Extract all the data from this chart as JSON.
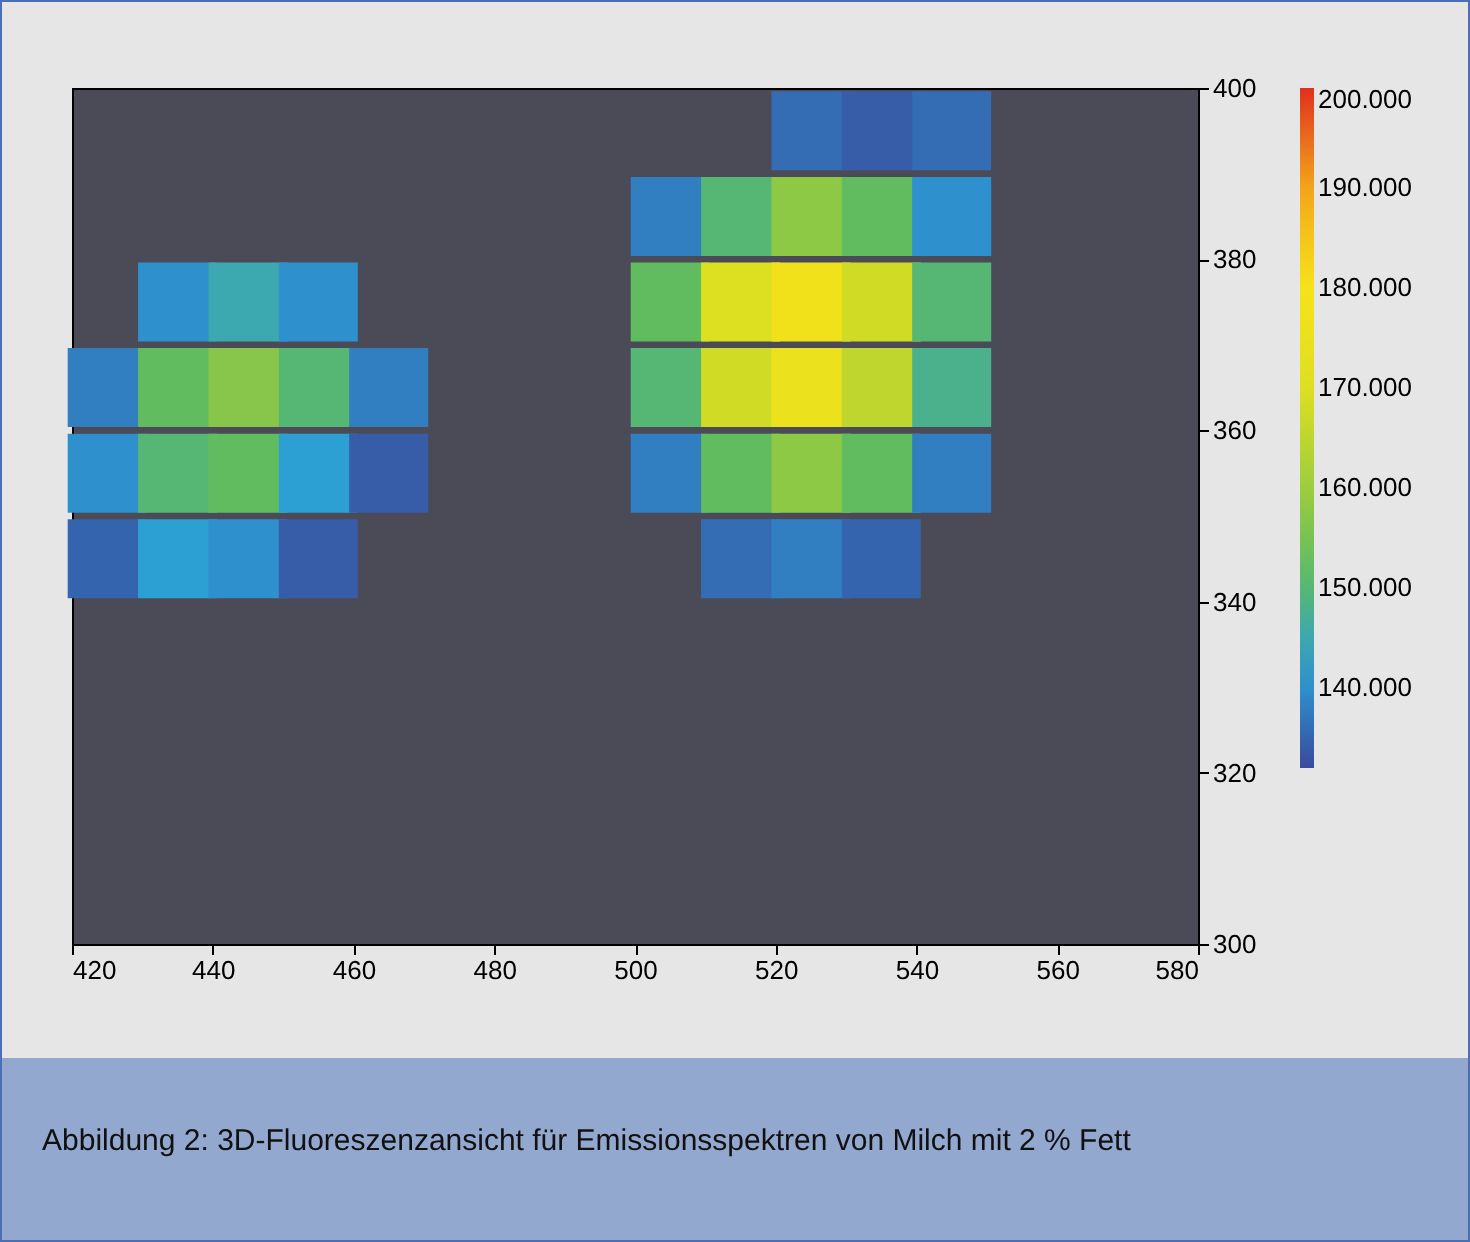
{
  "chart_data": {
    "type": "scatter",
    "marker": "square",
    "x": [
      525,
      535,
      545,
      505,
      515,
      525,
      535,
      545,
      435,
      445,
      455,
      505,
      515,
      525,
      535,
      545,
      425,
      435,
      445,
      455,
      465,
      505,
      515,
      525,
      535,
      545,
      425,
      435,
      445,
      455,
      465,
      505,
      515,
      525,
      535,
      545,
      425,
      435,
      445,
      455,
      515,
      525,
      535
    ],
    "values": [
      395,
      395,
      395,
      385,
      385,
      385,
      385,
      385,
      375,
      375,
      375,
      375,
      375,
      375,
      375,
      375,
      365,
      365,
      365,
      365,
      365,
      365,
      365,
      365,
      365,
      365,
      355,
      355,
      355,
      355,
      355,
      355,
      355,
      355,
      355,
      355,
      345,
      345,
      345,
      345,
      345,
      345,
      345
    ],
    "cvalues": [
      136000,
      134000,
      136000,
      138000,
      150000,
      158000,
      152000,
      140000,
      140000,
      145000,
      140000,
      152000,
      170000,
      178000,
      168000,
      150000,
      138000,
      152000,
      157000,
      150000,
      138000,
      150000,
      168000,
      175000,
      165000,
      148000,
      140000,
      150000,
      152000,
      142000,
      134000,
      138000,
      152000,
      158000,
      152000,
      138000,
      135000,
      142000,
      140000,
      134000,
      136000,
      138000,
      135000
    ],
    "xlim": [
      420,
      580
    ],
    "xticks": [
      420,
      440,
      460,
      480,
      500,
      520,
      540,
      560,
      580
    ],
    "ylim": [
      300,
      400
    ],
    "yticks": [
      300,
      320,
      340,
      360,
      380,
      400
    ],
    "clim": [
      132000,
      200000
    ],
    "cticks": [
      {
        "value": 140000,
        "label": "140.000"
      },
      {
        "value": 150000,
        "label": "150.000"
      },
      {
        "value": 160000,
        "label": "160.000"
      },
      {
        "value": 170000,
        "label": "170.000"
      },
      {
        "value": 180000,
        "label": "180.000"
      },
      {
        "value": 190000,
        "label": "190.000"
      },
      {
        "value": 200000,
        "label": "200.000"
      }
    ],
    "annotations": [
      "Abbildung 2: 3D-Fluoreszenzansicht für Emissionsspektren von Milch mit 2 % Fett"
    ]
  }
}
